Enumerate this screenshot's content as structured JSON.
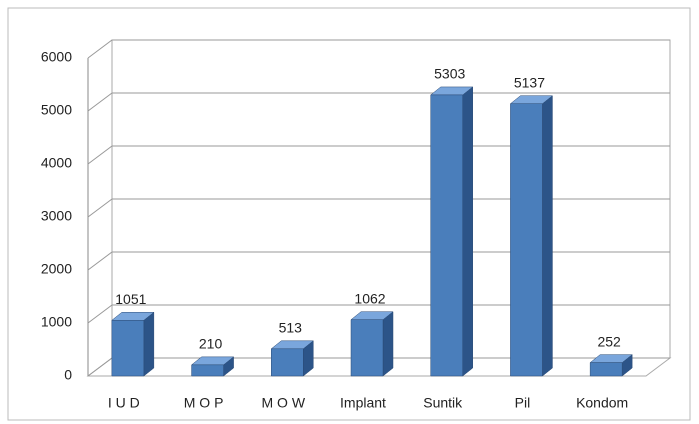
{
  "chart_data": {
    "type": "bar3d",
    "categories": [
      "I U D",
      "M O P",
      "M O W",
      "Implant",
      "Suntik",
      "Pil",
      "Kondom"
    ],
    "values": [
      1051,
      210,
      513,
      1062,
      5303,
      5137,
      252
    ],
    "color": "#4a7ebb",
    "ylim": [
      0,
      6000
    ],
    "yticks": [
      0,
      1000,
      2000,
      3000,
      4000,
      5000,
      6000
    ],
    "grid": true
  }
}
